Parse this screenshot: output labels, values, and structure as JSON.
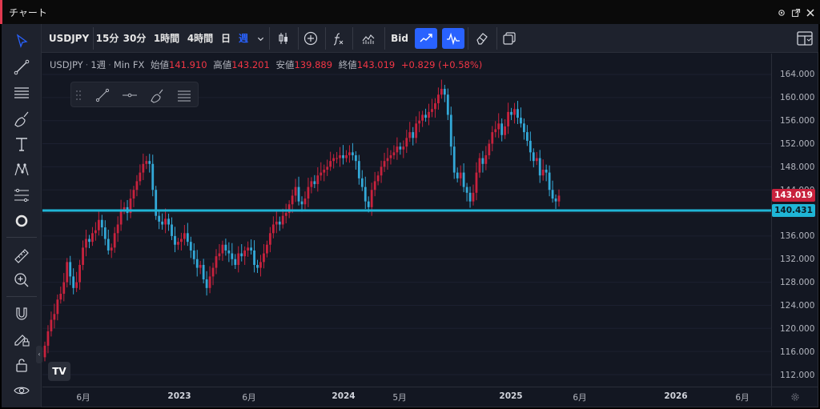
{
  "window": {
    "title": "チャート"
  },
  "toolbar": {
    "symbol": "USDJPY",
    "intervals": [
      "15分",
      "30分",
      "1時間",
      "4時間",
      "日",
      "週"
    ],
    "active_interval": "週",
    "bid_label": "Bid"
  },
  "legend": {
    "symbol": "USDJPY",
    "interval": "1週",
    "source": "Min FX",
    "open_label": "始値",
    "open": "141.910",
    "high_label": "高値",
    "high": "143.201",
    "low_label": "安値",
    "low": "139.889",
    "close_label": "終値",
    "close": "143.019",
    "change": "+0.829 (+0.58%)"
  },
  "price_scale": {
    "ticks": [
      "164.000",
      "160.000",
      "156.000",
      "152.000",
      "148.000",
      "144.000",
      "140.000",
      "136.000",
      "132.000",
      "128.000",
      "124.000",
      "120.000",
      "116.000",
      "112.000"
    ]
  },
  "time_scale": {
    "labels": [
      {
        "text": "6月",
        "year": false
      },
      {
        "text": "2023",
        "year": true
      },
      {
        "text": "6月",
        "year": false
      },
      {
        "text": "2024",
        "year": true
      },
      {
        "text": "5月",
        "year": false
      },
      {
        "text": "2025",
        "year": true
      },
      {
        "text": "6月",
        "year": false
      },
      {
        "text": "2026",
        "year": true
      },
      {
        "text": "6月",
        "year": false
      }
    ]
  },
  "badges": {
    "last_price": "143.019",
    "hline_price": "140.431"
  },
  "logo": "TV",
  "colors": {
    "up": "#33a9d8",
    "down": "#c8223d",
    "hline": "#1fb5d6",
    "active": "#2962ff",
    "bg": "#131722",
    "panel": "#1e222d"
  },
  "chart_data": {
    "type": "candlestick",
    "symbol": "USDJPY",
    "interval": "1週",
    "ylim": [
      110.0,
      166.0
    ],
    "horizontal_line": 140.431,
    "last_close": 143.019,
    "x_axis_labels": [
      "6月",
      "2023",
      "6月",
      "2024",
      "5月",
      "2025",
      "6月",
      "2026",
      "6月"
    ],
    "y_ticks": [
      112,
      116,
      120,
      124,
      128,
      132,
      136,
      140,
      144,
      148,
      152,
      156,
      160,
      164
    ],
    "closes": [
      117.0,
      119.5,
      121.5,
      122.5,
      125.0,
      126.0,
      128.0,
      131.5,
      129.0,
      127.0,
      128.0,
      131.0,
      134.0,
      135.5,
      135.0,
      136.5,
      137.0,
      138.8,
      137.5,
      135.5,
      133.5,
      134.0,
      136.5,
      138.0,
      140.5,
      141.0,
      140.0,
      142.5,
      144.0,
      145.5,
      147.0,
      148.5,
      149.0,
      148.5,
      144.0,
      139.5,
      138.5,
      138.0,
      139.0,
      138.0,
      136.0,
      134.5,
      135.0,
      135.5,
      136.5,
      135.0,
      133.5,
      132.0,
      130.5,
      131.0,
      128.5,
      127.0,
      129.0,
      130.5,
      132.5,
      133.0,
      134.5,
      133.5,
      133.0,
      132.0,
      131.0,
      133.0,
      132.5,
      133.5,
      134.0,
      133.5,
      131.0,
      130.5,
      131.5,
      133.0,
      134.5,
      136.5,
      138.0,
      138.5,
      138.0,
      139.5,
      140.0,
      141.5,
      143.0,
      144.5,
      142.0,
      141.5,
      142.5,
      144.5,
      145.5,
      145.0,
      146.5,
      147.0,
      147.5,
      148.0,
      149.0,
      149.5,
      149.5,
      150.0,
      149.5,
      150.0,
      150.5,
      150.0,
      149.0,
      146.0,
      144.5,
      142.0,
      141.0,
      144.0,
      145.5,
      146.5,
      148.0,
      149.0,
      149.5,
      150.0,
      150.5,
      151.5,
      151.0,
      151.5,
      153.0,
      154.0,
      153.0,
      155.5,
      156.0,
      157.0,
      156.5,
      157.5,
      158.0,
      159.0,
      160.5,
      161.5,
      160.5,
      157.0,
      151.5,
      147.0,
      146.0,
      147.0,
      144.5,
      143.5,
      142.0,
      143.5,
      147.0,
      149.5,
      148.5,
      150.0,
      152.0,
      154.0,
      154.5,
      155.5,
      153.5,
      155.0,
      157.5,
      157.0,
      158.0,
      156.5,
      155.5,
      154.0,
      152.5,
      150.5,
      149.0,
      149.5,
      146.5,
      147.5,
      147.0,
      144.0,
      142.5,
      142.0,
      143.0
    ]
  }
}
